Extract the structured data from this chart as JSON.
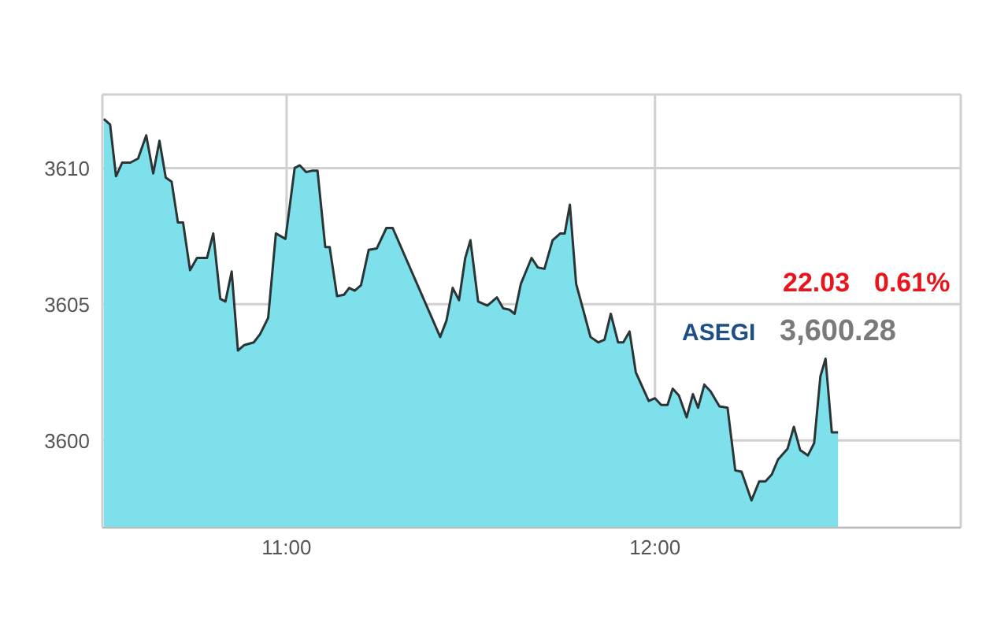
{
  "chart_data": {
    "type": "area",
    "x": [
      10.504,
      10.521,
      10.537,
      10.554,
      10.576,
      10.597,
      10.619,
      10.638,
      10.655,
      10.672,
      10.688,
      10.705,
      10.719,
      10.738,
      10.757,
      10.784,
      10.801,
      10.82,
      10.834,
      10.851,
      10.868,
      10.885,
      10.911,
      10.928,
      10.95,
      10.971,
      10.997,
      11.022,
      11.036,
      11.053,
      11.069,
      11.084,
      11.105,
      11.117,
      11.137,
      11.156,
      11.17,
      11.185,
      11.202,
      11.223,
      11.245,
      11.271,
      11.288,
      11.417,
      11.434,
      11.451,
      11.468,
      11.485,
      11.499,
      11.52,
      11.545,
      11.571,
      11.588,
      11.605,
      11.619,
      11.636,
      11.665,
      11.682,
      11.7,
      11.722,
      11.743,
      11.755,
      11.769,
      11.786,
      11.808,
      11.825,
      11.846,
      11.863,
      11.88,
      11.9,
      11.914,
      11.931,
      11.948,
      11.983,
      12.0,
      12.017,
      12.034,
      12.048,
      12.065,
      12.086,
      12.103,
      12.117,
      12.134,
      12.151,
      12.175,
      12.197,
      12.218,
      12.235,
      12.262,
      12.283,
      12.3,
      12.317,
      12.334,
      12.36,
      12.377,
      12.394,
      12.415,
      12.432,
      12.449,
      12.463,
      12.48,
      12.497
    ],
    "series": [
      {
        "color": "#7ee0ea",
        "values": [
          3611.8,
          3611.6,
          3609.7,
          3610.2,
          3610.2,
          3610.35,
          3611.2,
          3609.8,
          3611.0,
          3609.65,
          3609.5,
          3608.0,
          3608.0,
          3606.25,
          3606.7,
          3606.7,
          3607.6,
          3605.2,
          3605.1,
          3606.2,
          3603.3,
          3603.5,
          3603.6,
          3603.9,
          3604.5,
          3607.6,
          3607.4,
          3610.0,
          3610.1,
          3609.85,
          3609.9,
          3609.9,
          3607.1,
          3607.1,
          3605.3,
          3605.35,
          3605.6,
          3605.5,
          3605.7,
          3607.0,
          3607.05,
          3607.8,
          3607.8,
          3603.8,
          3604.4,
          3605.6,
          3605.15,
          3606.7,
          3607.35,
          3605.1,
          3604.95,
          3605.25,
          3604.85,
          3604.8,
          3604.65,
          3605.75,
          3606.7,
          3606.35,
          3606.3,
          3607.35,
          3607.6,
          3607.6,
          3608.65,
          3605.75,
          3604.65,
          3603.8,
          3603.6,
          3603.7,
          3604.65,
          3603.6,
          3603.6,
          3604.0,
          3602.5,
          3601.45,
          3601.55,
          3601.3,
          3601.3,
          3601.9,
          3601.65,
          3600.85,
          3601.7,
          3601.2,
          3602.05,
          3601.8,
          3601.25,
          3601.2,
          3598.9,
          3598.85,
          3597.8,
          3598.5,
          3598.5,
          3598.75,
          3599.3,
          3599.7,
          3600.5,
          3599.65,
          3599.45,
          3599.9,
          3602.35,
          3603.0,
          3600.3,
          3600.3
        ]
      }
    ],
    "xlim": [
      10.5,
      12.83
    ],
    "xticks": [
      {
        "value": 11,
        "label": "11:00"
      },
      {
        "value": 12,
        "label": "12:00"
      }
    ],
    "ylim": [
      3596.8,
      3612.7
    ],
    "yticks": [
      3600,
      3605,
      3610
    ],
    "grid": true,
    "annotations": [
      "22.03",
      "0.61%",
      "ASEGI",
      "3,600.28"
    ]
  }
}
